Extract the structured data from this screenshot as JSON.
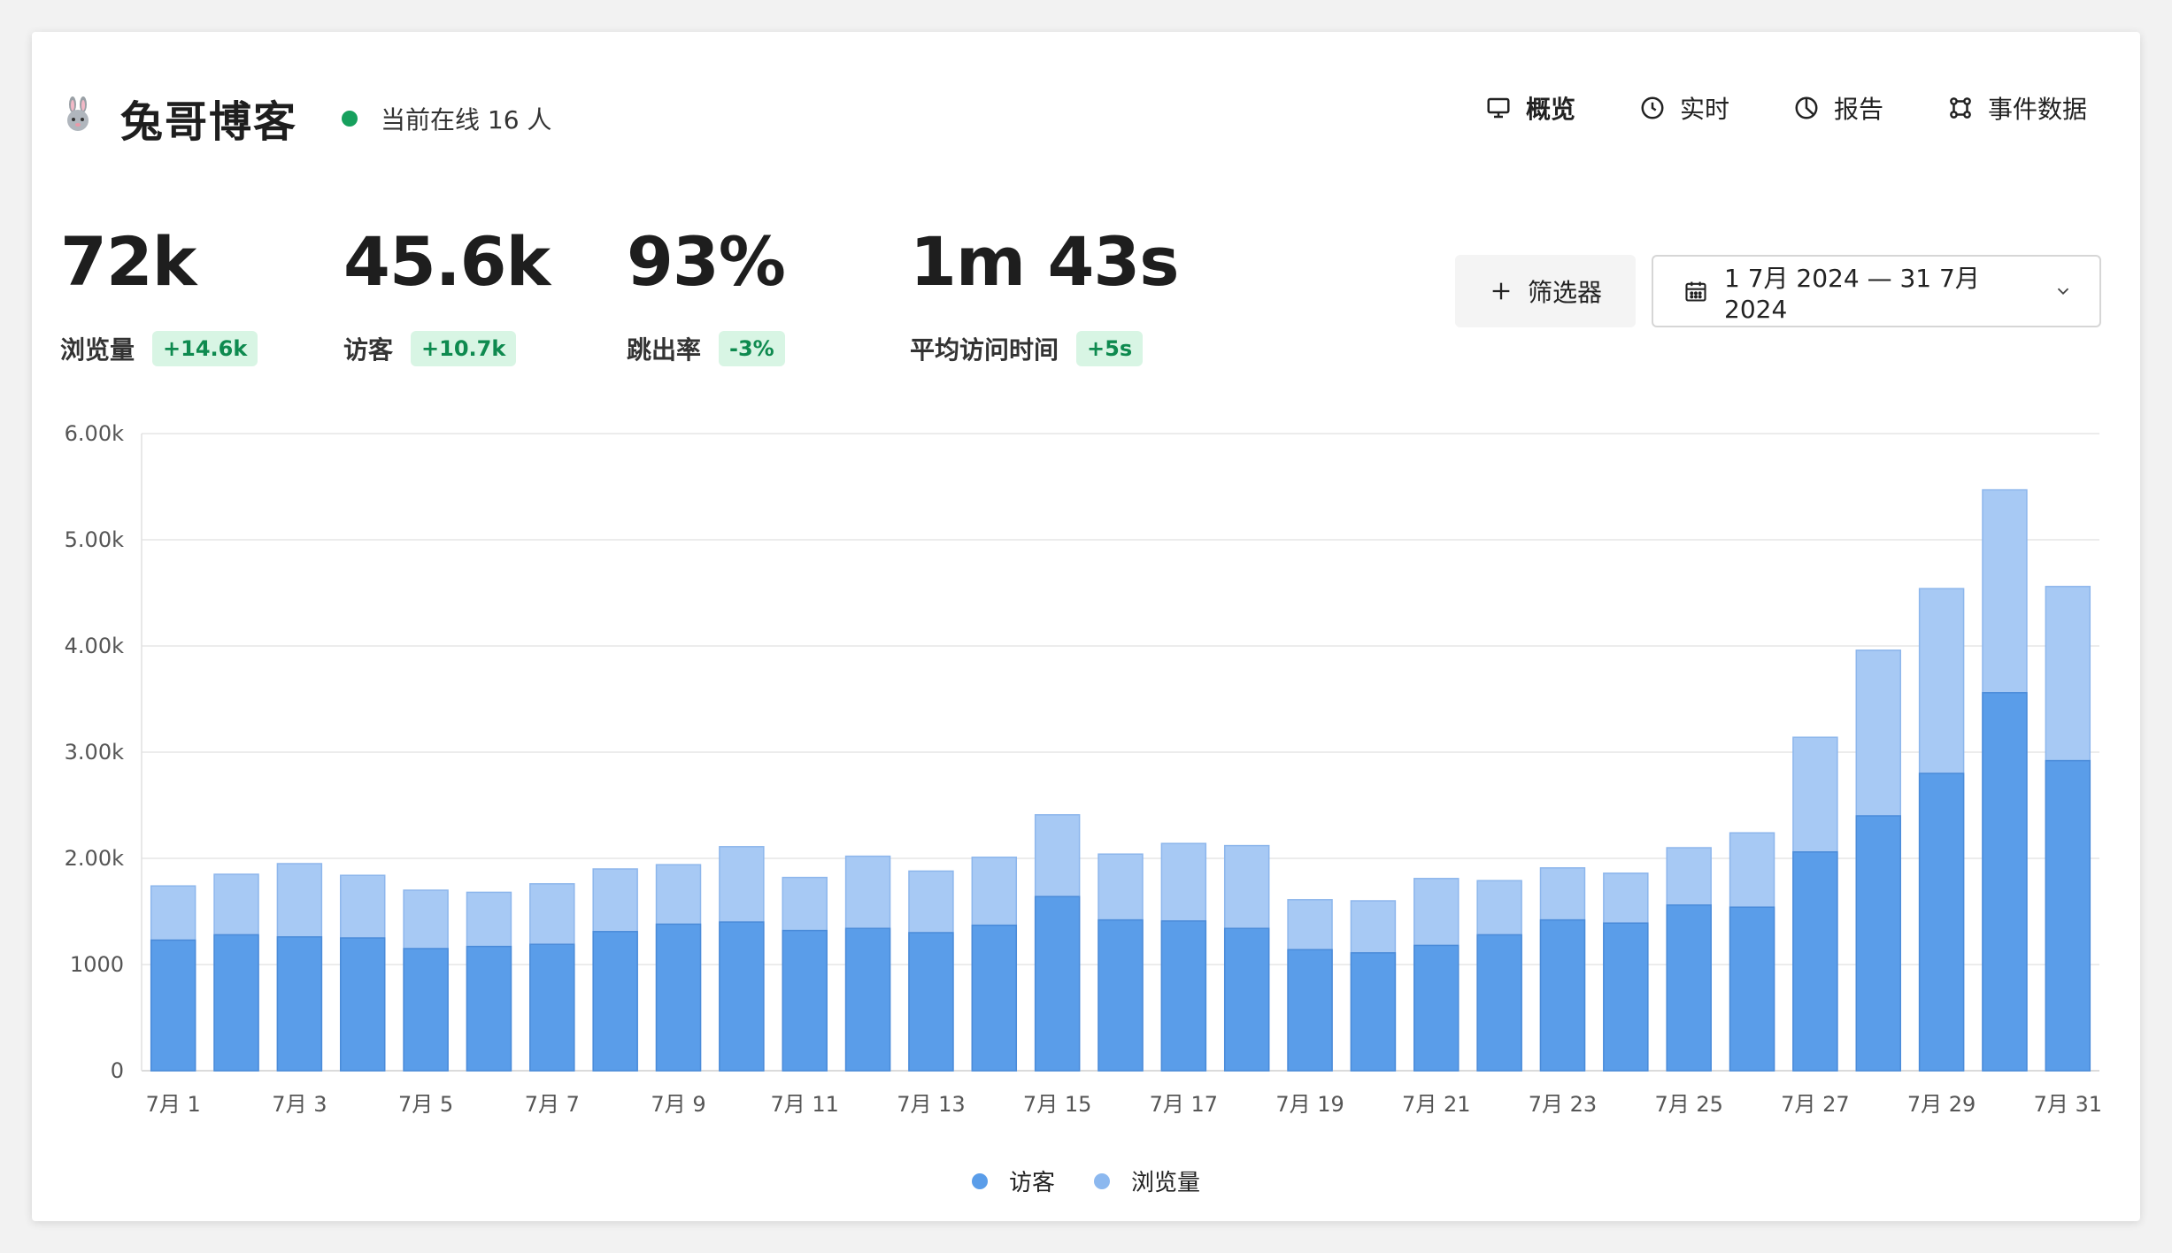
{
  "header": {
    "title": "兔哥博客",
    "online_text": "当前在线 16 人",
    "nav": [
      {
        "label": "概览",
        "icon": "monitor-icon",
        "active": true
      },
      {
        "label": "实时",
        "icon": "clock-icon",
        "active": false
      },
      {
        "label": "报告",
        "icon": "pie-chart-icon",
        "active": false
      },
      {
        "label": "事件数据",
        "icon": "nodes-icon",
        "active": false
      }
    ]
  },
  "metrics": [
    {
      "value": "72k",
      "label": "浏览量",
      "change": "+14.6k"
    },
    {
      "value": "45.6k",
      "label": "访客",
      "change": "+10.7k"
    },
    {
      "value": "93%",
      "label": "跳出率",
      "change": "-3%"
    },
    {
      "value": "1m 43s",
      "label": "平均访问时间",
      "change": "+5s"
    }
  ],
  "controls": {
    "filter_label": "筛选器",
    "date_range": "1 7月 2024 — 31 7月 2024"
  },
  "colors": {
    "visitors": "#5a9de9",
    "pageviews": "#a7c9f4",
    "positive": "#0e8a4f"
  },
  "chart_data": {
    "type": "bar",
    "stacked": "overlay",
    "categories": [
      "7月 1",
      "7月 2",
      "7月 3",
      "7月 4",
      "7月 5",
      "7月 6",
      "7月 7",
      "7月 8",
      "7月 9",
      "7月 10",
      "7月 11",
      "7月 12",
      "7月 13",
      "7月 14",
      "7月 15",
      "7月 16",
      "7月 17",
      "7月 18",
      "7月 19",
      "7月 20",
      "7月 21",
      "7月 22",
      "7月 23",
      "7月 24",
      "7月 25",
      "7月 26",
      "7月 27",
      "7月 28",
      "7月 29",
      "7月 30",
      "7月 31"
    ],
    "x_tick_labels": [
      "7月 1",
      "",
      "7月 3",
      "",
      "7月 5",
      "",
      "7月 7",
      "",
      "7月 9",
      "",
      "7月 11",
      "",
      "7月 13",
      "",
      "7月 15",
      "",
      "7月 17",
      "",
      "7月 19",
      "",
      "7月 21",
      "",
      "7月 23",
      "",
      "7月 25",
      "",
      "7月 27",
      "",
      "7月 29",
      "",
      "7月 31"
    ],
    "series": [
      {
        "name": "访客",
        "values": [
          1230,
          1280,
          1260,
          1250,
          1150,
          1170,
          1190,
          1310,
          1380,
          1400,
          1320,
          1340,
          1300,
          1370,
          1640,
          1420,
          1410,
          1340,
          1140,
          1110,
          1180,
          1280,
          1420,
          1390,
          1560,
          1540,
          2060,
          2400,
          2800,
          3560,
          2920
        ]
      },
      {
        "name": "浏览量",
        "values": [
          1740,
          1850,
          1950,
          1840,
          1700,
          1680,
          1760,
          1900,
          1940,
          2110,
          1820,
          2020,
          1880,
          2010,
          2410,
          2040,
          2140,
          2120,
          1610,
          1600,
          1810,
          1790,
          1910,
          1860,
          2100,
          2240,
          3140,
          3960,
          4540,
          5470,
          4560
        ]
      }
    ],
    "ylim": [
      0,
      6000
    ],
    "y_ticks": [
      0,
      1000,
      2000,
      3000,
      4000,
      5000,
      6000
    ],
    "y_tick_labels": [
      "0",
      "1000",
      "2.00k",
      "3.00k",
      "4.00k",
      "5.00k",
      "6.00k"
    ],
    "grid": true,
    "legend_position": "bottom-center"
  }
}
